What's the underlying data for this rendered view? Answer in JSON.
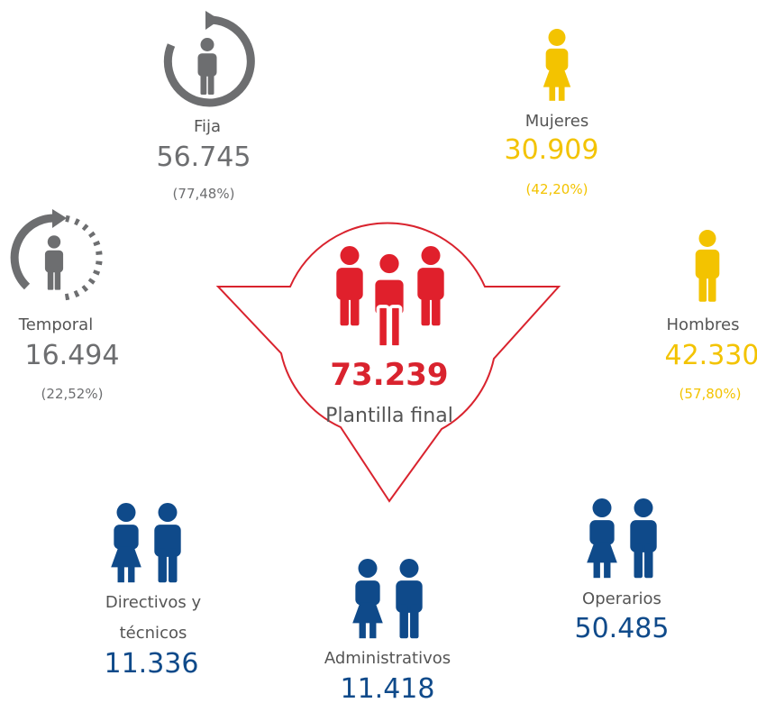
{
  "center": {
    "value": "73.239",
    "label": "Plantilla final"
  },
  "contract": [
    {
      "label": "Fija",
      "value": "56.745",
      "pct": "(77,48%)"
    },
    {
      "label": "Temporal",
      "value": "16.494",
      "pct": "(22,52%)"
    }
  ],
  "gender": [
    {
      "label": "Mujeres",
      "value": "30.909",
      "pct": "(42,20%)"
    },
    {
      "label": "Hombres",
      "value": "42.330",
      "pct": "(57,80%)"
    }
  ],
  "category": [
    {
      "label": [
        "Directivos y",
        "técnicos"
      ],
      "value": "11.336"
    },
    {
      "label": [
        "Administrativos"
      ],
      "value": "11.418"
    },
    {
      "label": [
        "Operarios"
      ],
      "value": "50.485"
    }
  ]
}
